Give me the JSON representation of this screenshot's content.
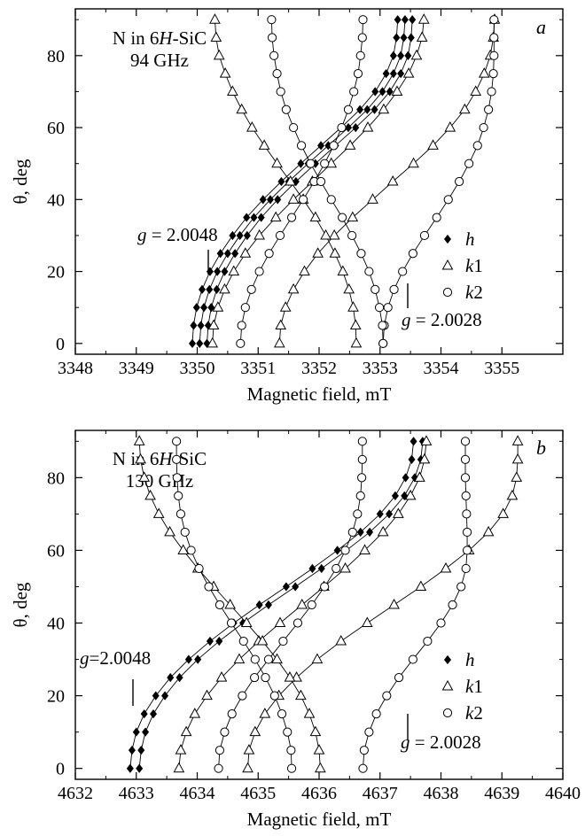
{
  "chart_data": [
    {
      "type": "scatter",
      "panel_label": "a",
      "annotation_lines": [
        "N in 6H-SiC",
        "94 GHz"
      ],
      "xlabel": "Magnetic field, mT",
      "ylabel": "θ, deg",
      "xlim": [
        3348,
        3356
      ],
      "ylim": [
        -3,
        93
      ],
      "xticks": [
        3348,
        3349,
        3350,
        3351,
        3352,
        3353,
        3354,
        3355
      ],
      "yticks": [
        0,
        20,
        40,
        60,
        80
      ],
      "grid": false,
      "legend_position": "lower-right",
      "g_labels": [
        {
          "text": "g = 2.0048",
          "field": 3350.1
        },
        {
          "text": "g = 2.0028",
          "field": 3353.5
        }
      ],
      "theta": [
        0,
        5,
        10,
        15,
        20,
        25,
        30,
        35,
        40,
        45,
        50,
        55,
        60,
        65,
        70,
        75,
        80,
        85,
        90
      ],
      "series": [
        {
          "name": "h",
          "marker": "diamond-filled",
          "values": [
            [
              3349.92,
              3349.94,
              3349.99,
              3350.08,
              3350.21,
              3350.38,
              3350.58,
              3350.81,
              3351.08,
              3351.38,
              3351.7,
              3352.03,
              3352.36,
              3352.67,
              3352.92,
              3353.1,
              3353.22,
              3353.27,
              3353.29
            ],
            [
              3350.04,
              3350.06,
              3350.11,
              3350.2,
              3350.33,
              3350.5,
              3350.7,
              3350.93,
              3351.2,
              3351.5,
              3351.82,
              3352.15,
              3352.48,
              3352.79,
              3353.04,
              3353.22,
              3353.34,
              3353.39,
              3353.41
            ],
            [
              3350.16,
              3350.18,
              3350.23,
              3350.32,
              3350.45,
              3350.62,
              3350.82,
              3351.05,
              3351.32,
              3351.62,
              3351.94,
              3352.27,
              3352.6,
              3352.91,
              3353.16,
              3353.34,
              3353.46,
              3353.51,
              3353.53
            ]
          ]
        },
        {
          "name": "k1",
          "marker": "triangle-open",
          "values": [
            [
              3350.25,
              3350.27,
              3350.34,
              3350.45,
              3350.6,
              3350.79,
              3351.02,
              3351.29,
              3351.58,
              3351.89,
              3352.2,
              3352.51,
              3352.8,
              3353.06,
              3353.28,
              3353.47,
              3353.6,
              3353.69,
              3353.72
            ],
            [
              3351.35,
              3351.37,
              3351.45,
              3351.58,
              3351.76,
              3351.98,
              3352.25,
              3352.55,
              3352.88,
              3353.21,
              3353.55,
              3353.87,
              3354.15,
              3354.39,
              3354.57,
              3354.71,
              3354.81,
              3354.86,
              3354.88
            ],
            [
              3352.61,
              3352.6,
              3352.56,
              3352.49,
              3352.39,
              3352.26,
              3352.11,
              3351.94,
              3351.74,
              3351.53,
              3351.31,
              3351.1,
              3350.9,
              3350.73,
              3350.58,
              3350.46,
              3350.36,
              3350.31,
              3350.29
            ]
          ]
        },
        {
          "name": "k2",
          "marker": "circle-open",
          "values": [
            [
              3350.71,
              3350.73,
              3350.79,
              3350.89,
              3351.02,
              3351.18,
              3351.36,
              3351.55,
              3351.74,
              3351.92,
              3352.09,
              3352.24,
              3352.37,
              3352.48,
              3352.57,
              3352.64,
              3352.68,
              3352.71,
              3352.72
            ],
            [
              3353.05,
              3353.07,
              3353.13,
              3353.23,
              3353.37,
              3353.54,
              3353.73,
              3353.93,
              3354.12,
              3354.3,
              3354.46,
              3354.6,
              3354.7,
              3354.78,
              3354.83,
              3354.86,
              3354.87,
              3354.87,
              3354.87
            ],
            [
              3353.05,
              3353.04,
              3352.99,
              3352.92,
              3352.82,
              3352.69,
              3352.54,
              3352.38,
              3352.2,
              3352.03,
              3351.86,
              3351.71,
              3351.58,
              3351.46,
              3351.37,
              3351.31,
              3351.26,
              3351.23,
              3351.22
            ]
          ]
        }
      ]
    },
    {
      "type": "scatter",
      "panel_label": "b",
      "annotation_lines": [
        "N in 6H-SiC",
        "130 GHz"
      ],
      "xlabel": "Magnetic field, mT",
      "ylabel": "θ, deg",
      "xlim": [
        4632,
        4640
      ],
      "ylim": [
        -3,
        93
      ],
      "xticks": [
        4632,
        4633,
        4634,
        4635,
        4636,
        4637,
        4638,
        4639,
        4640
      ],
      "yticks": [
        0,
        20,
        40,
        60,
        80
      ],
      "grid": false,
      "legend_position": "lower-right",
      "g_labels": [
        {
          "text": "g=2.0048",
          "field": 4633.0
        },
        {
          "text": "g = 2.0028",
          "field": 4636.6
        }
      ],
      "theta": [
        0,
        5,
        10,
        15,
        20,
        25,
        30,
        35,
        40,
        45,
        50,
        55,
        60,
        65,
        70,
        75,
        80,
        85,
        90
      ],
      "series": [
        {
          "name": "h",
          "marker": "diamond-filled",
          "values": [
            [
              4632.9,
              4632.93,
              4633.0,
              4633.13,
              4633.32,
              4633.56,
              4633.86,
              4634.21,
              4634.6,
              4635.02,
              4635.46,
              4635.89,
              4636.3,
              4636.68,
              4637.0,
              4637.25,
              4637.42,
              4637.52,
              4637.55
            ],
            [
              4633.05,
              4633.08,
              4633.15,
              4633.28,
              4633.47,
              4633.71,
              4634.01,
              4634.36,
              4634.75,
              4635.17,
              4635.61,
              4636.04,
              4636.45,
              4636.83,
              4637.15,
              4637.4,
              4637.57,
              4637.67,
              4637.7
            ]
          ]
        },
        {
          "name": "k1",
          "marker": "triangle-open",
          "values": [
            [
              4633.7,
              4633.73,
              4633.82,
              4633.96,
              4634.16,
              4634.4,
              4634.69,
              4635.01,
              4635.36,
              4635.72,
              4636.08,
              4636.43,
              4636.75,
              4637.05,
              4637.3,
              4637.5,
              4637.65,
              4637.73,
              4637.76
            ],
            [
              4634.83,
              4634.85,
              4634.95,
              4635.11,
              4635.34,
              4635.63,
              4635.97,
              4636.36,
              4636.79,
              4637.23,
              4637.67,
              4638.08,
              4638.46,
              4638.78,
              4639.02,
              4639.17,
              4639.24,
              4639.26,
              4639.26
            ],
            [
              4636.02,
              4636.0,
              4635.94,
              4635.84,
              4635.7,
              4635.52,
              4635.31,
              4635.07,
              4634.81,
              4634.54,
              4634.27,
              4634.01,
              4633.77,
              4633.55,
              4633.37,
              4633.23,
              4633.13,
              4633.07,
              4633.05
            ]
          ]
        },
        {
          "name": "k2",
          "marker": "circle-open",
          "values": [
            [
              4634.35,
              4634.37,
              4634.45,
              4634.57,
              4634.74,
              4634.94,
              4635.17,
              4635.41,
              4635.65,
              4635.88,
              4636.09,
              4636.28,
              4636.43,
              4636.55,
              4636.63,
              4636.68,
              4636.7,
              4636.71,
              4636.71
            ],
            [
              4636.72,
              4636.74,
              4636.82,
              4636.94,
              4637.11,
              4637.31,
              4637.54,
              4637.78,
              4638.0,
              4638.19,
              4638.33,
              4638.41,
              4638.43,
              4638.43,
              4638.42,
              4638.41,
              4638.4,
              4638.4,
              4638.4
            ],
            [
              4635.55,
              4635.54,
              4635.48,
              4635.39,
              4635.27,
              4635.12,
              4634.95,
              4634.76,
              4634.56,
              4634.37,
              4634.19,
              4634.03,
              4633.9,
              4633.8,
              4633.73,
              4633.69,
              4633.67,
              4633.66,
              4633.66
            ]
          ]
        }
      ]
    }
  ]
}
